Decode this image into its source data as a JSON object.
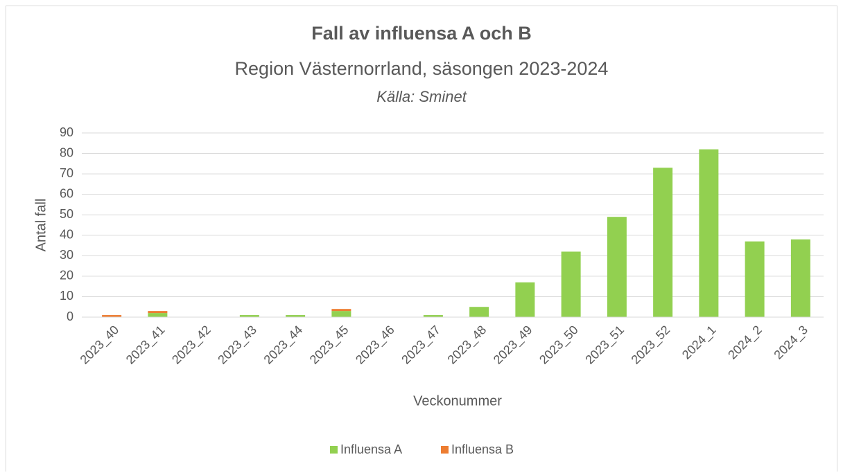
{
  "chart_data": {
    "type": "stacked_bar",
    "title": "Fall av influensa A och B",
    "subtitle": "Region Västernorrland, säsongen 2023-2024",
    "source": "Källa: Sminet",
    "x_label": "Veckonummer",
    "y_label": "Antal fall",
    "categories": [
      "2023_40",
      "2023_41",
      "2023_42",
      "2023_43",
      "2023_44",
      "2023_45",
      "2023_46",
      "2023_47",
      "2023_48",
      "2023_49",
      "2023_50",
      "2023_51",
      "2023_52",
      "2024_1",
      "2024_2",
      "2024_3"
    ],
    "series": [
      {
        "name": "Influensa A",
        "color": "#92d050",
        "values": [
          0,
          2,
          0,
          1,
          1,
          3,
          0,
          1,
          5,
          17,
          32,
          49,
          73,
          82,
          37,
          38
        ]
      },
      {
        "name": "Influensa B",
        "color": "#ed7d31",
        "values": [
          1,
          1,
          0,
          0,
          0,
          1,
          0,
          0,
          0,
          0,
          0,
          0,
          0,
          0,
          0,
          0
        ]
      }
    ],
    "ylim": [
      0,
      90
    ],
    "yticks": [
      0,
      10,
      20,
      30,
      40,
      50,
      60,
      70,
      80,
      90
    ],
    "grid": true,
    "legend": "bottom"
  }
}
